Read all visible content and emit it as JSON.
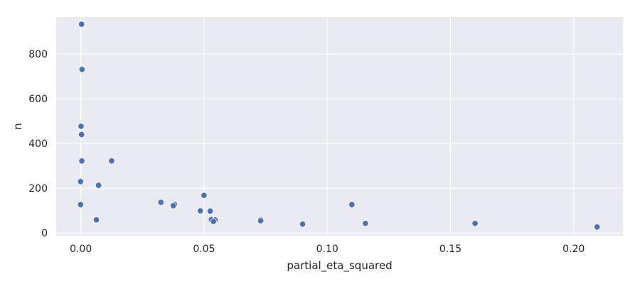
{
  "chart_data": {
    "type": "scatter",
    "title": "",
    "xlabel": "partial_eta_squared",
    "ylabel": "n",
    "xlim": [
      -0.01,
      0.22
    ],
    "ylim": [
      -12,
      965
    ],
    "xticks": [
      0.0,
      0.05,
      0.1,
      0.15,
      0.2
    ],
    "xtick_labels": [
      "0.00",
      "0.05",
      "0.10",
      "0.15",
      "0.20"
    ],
    "yticks": [
      0,
      200,
      400,
      600,
      800
    ],
    "ytick_labels": [
      "0",
      "200",
      "400",
      "600",
      "800"
    ],
    "grid": true,
    "background_color": "#eaeaf2",
    "grid_color": "#ffffff",
    "marker_color": "#4c72b0",
    "series": [
      {
        "points": [
          {
            "x": 0.0003,
            "y": 933
          },
          {
            "x": 0.0005,
            "y": 731
          },
          {
            "x": 0.0001,
            "y": 477
          },
          {
            "x": 0.0003,
            "y": 440
          },
          {
            "x": 0.0004,
            "y": 322
          },
          {
            "x": 0.0125,
            "y": 322
          },
          {
            "x": -0.0001,
            "y": 230
          },
          {
            "x": 0.0072,
            "y": 213
          },
          {
            "x": -0.0001,
            "y": 127
          },
          {
            "x": 0.0063,
            "y": 59
          },
          {
            "x": 0.0325,
            "y": 137
          },
          {
            "x": 0.038,
            "y": 128
          },
          {
            "x": 0.0375,
            "y": 122
          },
          {
            "x": 0.05,
            "y": 168
          },
          {
            "x": 0.0485,
            "y": 99
          },
          {
            "x": 0.0525,
            "y": 98
          },
          {
            "x": 0.053,
            "y": 60
          },
          {
            "x": 0.0545,
            "y": 58
          },
          {
            "x": 0.0538,
            "y": 52
          },
          {
            "x": 0.073,
            "y": 60
          },
          {
            "x": 0.073,
            "y": 55
          },
          {
            "x": 0.09,
            "y": 40
          },
          {
            "x": 0.11,
            "y": 127
          },
          {
            "x": 0.1155,
            "y": 43
          },
          {
            "x": 0.16,
            "y": 43
          },
          {
            "x": 0.2095,
            "y": 27
          }
        ]
      }
    ]
  }
}
